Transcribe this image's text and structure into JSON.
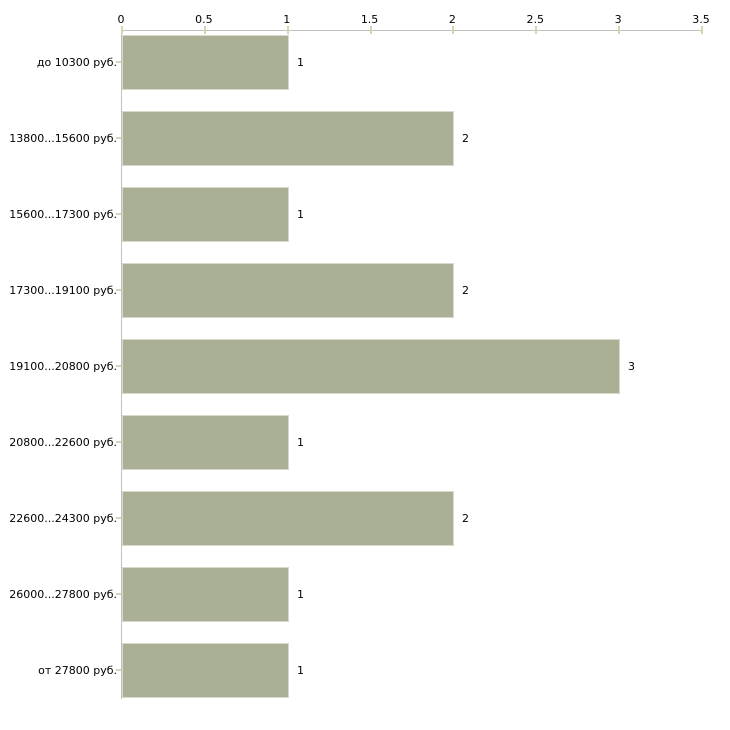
{
  "chart_data": {
    "type": "bar",
    "orientation": "horizontal",
    "title": "",
    "xlabel": "",
    "ylabel": "",
    "categories": [
      "до 10300 руб.",
      "13800...15600 руб.",
      "15600...17300 руб.",
      "17300...19100 руб.",
      "19100...20800 руб.",
      "20800...22600 руб.",
      "22600...24300 руб.",
      "26000...27800 руб.",
      "от 27800 руб."
    ],
    "values": [
      1,
      2,
      1,
      2,
      3,
      1,
      2,
      1,
      1
    ],
    "value_labels": [
      "1",
      "2",
      "1",
      "2",
      "3",
      "1",
      "2",
      "1",
      "1"
    ],
    "x_ticks": [
      0,
      0.5,
      1,
      1.5,
      2,
      2.5,
      3,
      3.5
    ],
    "x_tick_labels": [
      "0",
      "0.5",
      "1",
      "1.5",
      "2",
      "2.5",
      "3",
      "3.5"
    ],
    "xlim": [
      0,
      3.5
    ],
    "grid": false,
    "legend": null,
    "axis_position": "top",
    "colors": {
      "bar_fill": "#a9b094",
      "bar_border": "#d8d8cc",
      "axis_line": "#c0c0c0",
      "tick_mark": "#d4d4ae",
      "text": "#000000",
      "background": "#ffffff"
    }
  }
}
